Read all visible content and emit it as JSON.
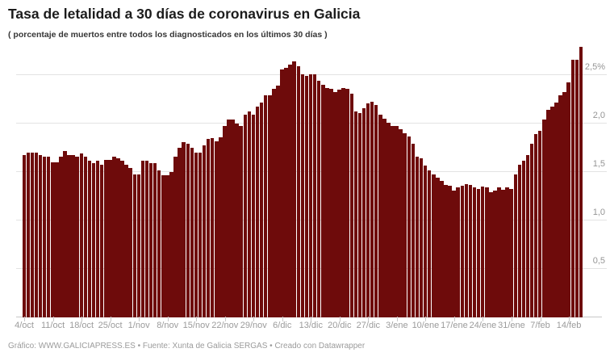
{
  "header": {
    "title": "Tasa de letalidad a 30 días de coronavirus en Galicia",
    "subtitle": "( porcentaje de muertos entre todos los diagnosticados en los últimos 30 días )"
  },
  "footer": {
    "text": "Gráfico: WWW.GALICIAPRESS.ES • Fuente: Xunta de Galicia SERGAS • Creado con Datawrapper"
  },
  "chart_data": {
    "type": "bar",
    "title": "Tasa de letalidad a 30 días de coronavirus en Galicia",
    "subtitle": "( porcentaje de muertos entre todos los diagnosticados en los últimos 30 días )",
    "unit": "%",
    "ylim": [
      0,
      2.8
    ],
    "grid": true,
    "legend": "none",
    "bar_color": "#6e0b0b",
    "y_ticks": [
      0.5,
      1.0,
      1.5,
      2.0,
      2.5
    ],
    "y_tick_labels": [
      "0,5",
      "1,0",
      "1,5",
      "2,0",
      "2,5%"
    ],
    "x_tick_labels": [
      "4/oct",
      "11/oct",
      "18/oct",
      "25/oct",
      "1/nov",
      "8/nov",
      "15/nov",
      "22/nov",
      "29/nov",
      "6/dic",
      "13/dic",
      "20/dic",
      "27/dic",
      "3/ene",
      "10/ene",
      "17/ene",
      "24/ene",
      "31/ene",
      "7/feb",
      "14/feb"
    ],
    "x": [
      "4/oct",
      "5/oct",
      "6/oct",
      "7/oct",
      "8/oct",
      "9/oct",
      "10/oct",
      "11/oct",
      "12/oct",
      "13/oct",
      "14/oct",
      "15/oct",
      "16/oct",
      "17/oct",
      "18/oct",
      "19/oct",
      "20/oct",
      "21/oct",
      "22/oct",
      "23/oct",
      "24/oct",
      "25/oct",
      "26/oct",
      "27/oct",
      "28/oct",
      "29/oct",
      "30/oct",
      "31/oct",
      "1/nov",
      "2/nov",
      "3/nov",
      "4/nov",
      "5/nov",
      "6/nov",
      "7/nov",
      "8/nov",
      "9/nov",
      "10/nov",
      "11/nov",
      "12/nov",
      "13/nov",
      "14/nov",
      "15/nov",
      "16/nov",
      "17/nov",
      "18/nov",
      "19/nov",
      "20/nov",
      "21/nov",
      "22/nov",
      "23/nov",
      "24/nov",
      "25/nov",
      "26/nov",
      "27/nov",
      "28/nov",
      "29/nov",
      "30/nov",
      "1/dic",
      "2/dic",
      "3/dic",
      "4/dic",
      "5/dic",
      "6/dic",
      "7/dic",
      "8/dic",
      "9/dic",
      "10/dic",
      "11/dic",
      "12/dic",
      "13/dic",
      "14/dic",
      "15/dic",
      "16/dic",
      "17/dic",
      "18/dic",
      "19/dic",
      "20/dic",
      "21/dic",
      "22/dic",
      "23/dic",
      "24/dic",
      "25/dic",
      "26/dic",
      "27/dic",
      "28/dic",
      "29/dic",
      "30/dic",
      "31/dic",
      "1/ene",
      "2/ene",
      "3/ene",
      "4/ene",
      "5/ene",
      "6/ene",
      "7/ene",
      "8/ene",
      "9/ene",
      "10/ene",
      "11/ene",
      "12/ene",
      "13/ene",
      "14/ene",
      "15/ene",
      "16/ene",
      "17/ene",
      "18/ene",
      "19/ene",
      "20/ene",
      "21/ene",
      "22/ene",
      "23/ene",
      "24/ene",
      "25/ene",
      "26/ene",
      "27/ene",
      "28/ene",
      "29/ene",
      "30/ene",
      "31/ene",
      "1/feb",
      "2/feb",
      "3/feb",
      "4/feb",
      "5/feb",
      "6/feb",
      "7/feb",
      "8/feb",
      "9/feb",
      "10/feb",
      "11/feb",
      "12/feb",
      "13/feb",
      "14/feb",
      "15/feb",
      "16/feb",
      "17/feb"
    ],
    "values": [
      1.67,
      1.69,
      1.69,
      1.69,
      1.67,
      1.65,
      1.65,
      1.59,
      1.59,
      1.65,
      1.71,
      1.67,
      1.67,
      1.65,
      1.68,
      1.65,
      1.61,
      1.58,
      1.61,
      1.57,
      1.62,
      1.62,
      1.65,
      1.63,
      1.61,
      1.57,
      1.53,
      1.47,
      1.47,
      1.61,
      1.61,
      1.58,
      1.58,
      1.51,
      1.46,
      1.46,
      1.49,
      1.65,
      1.74,
      1.8,
      1.78,
      1.74,
      1.69,
      1.69,
      1.77,
      1.83,
      1.84,
      1.81,
      1.85,
      1.97,
      2.03,
      2.03,
      1.99,
      1.97,
      2.08,
      2.12,
      2.08,
      2.17,
      2.21,
      2.28,
      2.28,
      2.35,
      2.38,
      2.55,
      2.57,
      2.6,
      2.63,
      2.58,
      2.5,
      2.48,
      2.5,
      2.5,
      2.43,
      2.39,
      2.36,
      2.35,
      2.32,
      2.34,
      2.36,
      2.35,
      2.3,
      2.12,
      2.1,
      2.15,
      2.2,
      2.22,
      2.18,
      2.08,
      2.04,
      2.0,
      1.97,
      1.97,
      1.93,
      1.89,
      1.86,
      1.78,
      1.65,
      1.63,
      1.56,
      1.51,
      1.47,
      1.43,
      1.4,
      1.36,
      1.35,
      1.3,
      1.33,
      1.35,
      1.37,
      1.36,
      1.33,
      1.32,
      1.34,
      1.33,
      1.28,
      1.3,
      1.33,
      1.31,
      1.33,
      1.32,
      1.47,
      1.57,
      1.61,
      1.67,
      1.78,
      1.88,
      1.92,
      2.03,
      2.13,
      2.17,
      2.21,
      2.28,
      2.32,
      2.42,
      2.65,
      2.65,
      2.78
    ]
  }
}
